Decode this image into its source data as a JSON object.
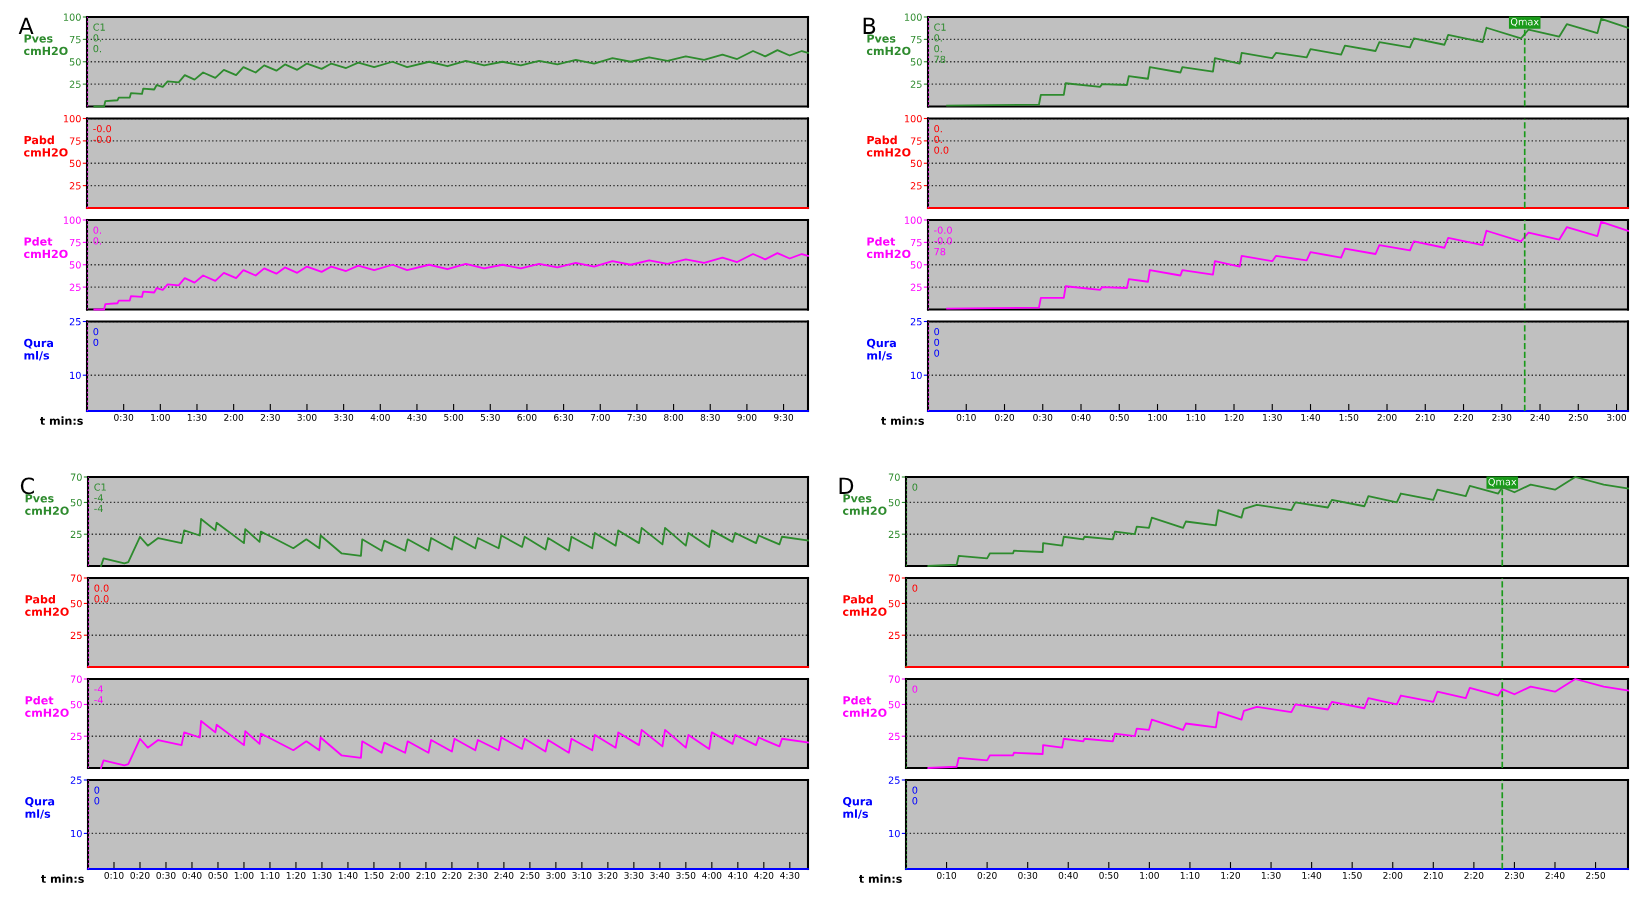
{
  "chart_data": [
    {
      "type": "line",
      "title": "A",
      "ylabel": "Pves\ncmH2O",
      "xlim": [
        0,
        590
      ],
      "ylim": [
        0,
        100
      ],
      "yticks": [
        25,
        50,
        75,
        100
      ],
      "grid": "y",
      "tick_labels": "y",
      "annotations": [
        "C1",
        "0.",
        "0."
      ],
      "ref_lines": [
        {
          "axis": "x",
          "value": 0,
          "color": "#ff00ff",
          "line_style": "dotted"
        }
      ],
      "series": [
        {
          "color": "#2e8b2e",
          "x": [
            6,
            14,
            15,
            25,
            26,
            35,
            36,
            45,
            46,
            55,
            57,
            62,
            66,
            75,
            80,
            88,
            95,
            105,
            112,
            122,
            128,
            138,
            145,
            155,
            162,
            172,
            180,
            192,
            200,
            212,
            222,
            235,
            250,
            262,
            280,
            295,
            310,
            325,
            340,
            355,
            370,
            385,
            400,
            415,
            430,
            445,
            460,
            475,
            490,
            505,
            520,
            532,
            545,
            555,
            565,
            575,
            585,
            590
          ],
          "values": [
            0,
            0,
            6,
            7,
            10,
            10,
            15,
            14,
            20,
            19,
            24,
            22,
            28,
            27,
            35,
            30,
            38,
            32,
            41,
            35,
            44,
            38,
            46,
            40,
            47,
            41,
            48,
            42,
            48,
            43,
            49,
            44,
            50,
            44,
            50,
            45,
            51,
            46,
            50,
            46,
            51,
            47,
            52,
            48,
            54,
            50,
            55,
            51,
            56,
            52,
            58,
            53,
            62,
            56,
            63,
            57,
            62,
            60
          ]
        }
      ]
    },
    {
      "type": "line",
      "title": "B",
      "ylabel": "Pves\ncmH2O",
      "xlim": [
        0,
        183
      ],
      "ylim": [
        0,
        100
      ],
      "yticks": [
        25,
        50,
        75,
        100
      ],
      "grid": "y",
      "tick_labels": "y",
      "annotations": [
        "C1",
        "0.",
        "0.",
        "78"
      ],
      "ref_lines": [
        {
          "axis": "x",
          "value": 0,
          "color": "#ff00ff",
          "line_style": "dotted"
        },
        {
          "axis": "x",
          "value": 156,
          "color": "#1a9a1a",
          "line_style": "dashed",
          "label": "Qmax"
        }
      ],
      "series": [
        {
          "color": "#2e8b2e",
          "x": [
            5,
            29,
            29.5,
            35.5,
            36,
            45,
            45.5,
            52,
            52.5,
            57.5,
            58,
            66,
            66.5,
            74.5,
            75,
            81.5,
            82,
            90,
            91,
            99,
            100,
            108,
            109,
            117,
            118,
            126,
            127,
            135,
            136,
            145,
            146,
            155,
            157,
            165,
            167,
            175,
            176,
            183
          ],
          "values": [
            1,
            2,
            13,
            13,
            26,
            22,
            25,
            24,
            34,
            31,
            44,
            38,
            44,
            39,
            54,
            48,
            60,
            54,
            60,
            55,
            64,
            58,
            68,
            62,
            72,
            66,
            76,
            69,
            80,
            72,
            88,
            76,
            86,
            78,
            92,
            82,
            98,
            88
          ]
        }
      ]
    },
    {
      "type": "line",
      "ylabel": "Pabd\ncmH2O",
      "xlim": [
        0,
        590
      ],
      "ylim": [
        0,
        100
      ],
      "yticks": [
        25,
        50,
        75,
        100
      ],
      "grid": "y",
      "tick_labels": "y",
      "annotations": [
        "-0.0",
        "-0.0"
      ],
      "ref_lines": [
        {
          "axis": "x",
          "value": 0,
          "color": "#ff00ff",
          "line_style": "dotted"
        }
      ],
      "series": [
        {
          "color": "#ff0000",
          "x": [
            0,
            590
          ],
          "values": [
            0,
            0
          ]
        }
      ]
    },
    {
      "type": "line",
      "ylabel": "Pabd\ncmH2O",
      "xlim": [
        0,
        183
      ],
      "ylim": [
        0,
        100
      ],
      "yticks": [
        25,
        50,
        75,
        100
      ],
      "grid": "y",
      "tick_labels": "y",
      "annotations": [
        "0.",
        "0.",
        "0.0"
      ],
      "ref_lines": [
        {
          "axis": "x",
          "value": 0,
          "color": "#ff00ff",
          "line_style": "dotted"
        },
        {
          "axis": "x",
          "value": 156,
          "color": "#1a9a1a",
          "line_style": "dashed"
        }
      ],
      "series": [
        {
          "color": "#ff0000",
          "x": [
            0,
            183
          ],
          "values": [
            0,
            0
          ]
        }
      ]
    },
    {
      "type": "line",
      "ylabel": "Pdet\ncmH2O",
      "xlim": [
        0,
        590
      ],
      "ylim": [
        0,
        100
      ],
      "yticks": [
        25,
        50,
        75,
        100
      ],
      "grid": "y",
      "tick_labels": "y",
      "annotations": [
        "0.",
        "0."
      ],
      "ref_lines": [
        {
          "axis": "x",
          "value": 0,
          "color": "#ff00ff",
          "line_style": "dotted"
        }
      ],
      "series": [
        {
          "color": "#ff00ff",
          "x": [
            6,
            14,
            15,
            25,
            26,
            35,
            36,
            45,
            46,
            55,
            57,
            62,
            66,
            75,
            80,
            88,
            95,
            105,
            112,
            122,
            128,
            138,
            145,
            155,
            162,
            172,
            180,
            192,
            200,
            212,
            222,
            235,
            250,
            262,
            280,
            295,
            310,
            325,
            340,
            355,
            370,
            385,
            400,
            415,
            430,
            445,
            460,
            475,
            490,
            505,
            520,
            532,
            545,
            555,
            565,
            575,
            585,
            590
          ],
          "values": [
            0,
            0,
            6,
            7,
            10,
            10,
            15,
            14,
            20,
            19,
            24,
            22,
            28,
            27,
            35,
            30,
            38,
            32,
            41,
            35,
            44,
            38,
            46,
            40,
            47,
            41,
            48,
            42,
            48,
            43,
            49,
            44,
            50,
            44,
            50,
            45,
            51,
            46,
            50,
            46,
            51,
            47,
            52,
            48,
            54,
            50,
            55,
            51,
            56,
            52,
            58,
            53,
            62,
            56,
            63,
            57,
            62,
            60
          ]
        }
      ]
    },
    {
      "type": "line",
      "ylabel": "Pdet\ncmH2O",
      "xlim": [
        0,
        183
      ],
      "ylim": [
        0,
        100
      ],
      "yticks": [
        25,
        50,
        75,
        100
      ],
      "grid": "y",
      "tick_labels": "y",
      "annotations": [
        "-0.0",
        "-0.0",
        "78"
      ],
      "ref_lines": [
        {
          "axis": "x",
          "value": 0,
          "color": "#ff00ff",
          "line_style": "dotted"
        },
        {
          "axis": "x",
          "value": 156,
          "color": "#1a9a1a",
          "line_style": "dashed"
        }
      ],
      "series": [
        {
          "color": "#ff00ff",
          "x": [
            5,
            29,
            29.5,
            35.5,
            36,
            45,
            45.5,
            52,
            52.5,
            57.5,
            58,
            66,
            66.5,
            74.5,
            75,
            81.5,
            82,
            90,
            91,
            99,
            100,
            108,
            109,
            117,
            118,
            126,
            127,
            135,
            136,
            145,
            146,
            155,
            157,
            165,
            167,
            175,
            176,
            183
          ],
          "values": [
            1,
            2,
            13,
            13,
            26,
            22,
            25,
            24,
            34,
            31,
            44,
            38,
            44,
            39,
            54,
            48,
            60,
            54,
            60,
            55,
            64,
            58,
            68,
            62,
            72,
            66,
            76,
            69,
            80,
            72,
            88,
            76,
            86,
            78,
            92,
            82,
            98,
            88
          ]
        }
      ]
    },
    {
      "type": "line",
      "ylabel": "Qura\nml/s",
      "xlabel": "t min:s",
      "xlim": [
        0,
        590
      ],
      "ylim": [
        0,
        25
      ],
      "yticks": [
        10,
        25
      ],
      "grid": "y",
      "annotations": [
        "0",
        "0"
      ],
      "ref_lines": [
        {
          "axis": "x",
          "value": 0,
          "color": "#ff00ff",
          "line_style": "dotted"
        }
      ],
      "xticks": [
        {
          "value": 30,
          "label": "0:30"
        },
        {
          "value": 60,
          "label": "1:00"
        },
        {
          "value": 90,
          "label": "1:30"
        },
        {
          "value": 120,
          "label": "2:00"
        },
        {
          "value": 150,
          "label": "2:30"
        },
        {
          "value": 180,
          "label": "3:00"
        },
        {
          "value": 210,
          "label": "3:30"
        },
        {
          "value": 240,
          "label": "4:00"
        },
        {
          "value": 270,
          "label": "4:30"
        },
        {
          "value": 300,
          "label": "5:00"
        },
        {
          "value": 330,
          "label": "5:30"
        },
        {
          "value": 360,
          "label": "6:00"
        },
        {
          "value": 390,
          "label": "6:30"
        },
        {
          "value": 420,
          "label": "7:00"
        },
        {
          "value": 450,
          "label": "7:30"
        },
        {
          "value": 480,
          "label": "8:00"
        },
        {
          "value": 510,
          "label": "8:30"
        },
        {
          "value": 540,
          "label": "9:00"
        },
        {
          "value": 570,
          "label": "9:30"
        }
      ],
      "series": [
        {
          "color": "#0000ff",
          "x": [
            0,
            590
          ],
          "values": [
            0,
            0
          ]
        }
      ]
    },
    {
      "type": "line",
      "ylabel": "Qura\nml/s",
      "xlabel": "t min:s",
      "xlim": [
        0,
        183
      ],
      "ylim": [
        0,
        25
      ],
      "yticks": [
        10,
        25
      ],
      "grid": "y",
      "annotations": [
        "0",
        "0",
        "0"
      ],
      "ref_lines": [
        {
          "axis": "x",
          "value": 0,
          "color": "#ff00ff",
          "line_style": "dotted"
        },
        {
          "axis": "x",
          "value": 156,
          "color": "#1a9a1a",
          "line_style": "dashed"
        }
      ],
      "xticks": [
        {
          "value": 10,
          "label": "0:10"
        },
        {
          "value": 20,
          "label": "0:20"
        },
        {
          "value": 30,
          "label": "0:30"
        },
        {
          "value": 40,
          "label": "0:40"
        },
        {
          "value": 50,
          "label": "0:50"
        },
        {
          "value": 60,
          "label": "1:00"
        },
        {
          "value": 70,
          "label": "1:10"
        },
        {
          "value": 80,
          "label": "1:20"
        },
        {
          "value": 90,
          "label": "1:30"
        },
        {
          "value": 100,
          "label": "1:40"
        },
        {
          "value": 110,
          "label": "1:50"
        },
        {
          "value": 120,
          "label": "2:00"
        },
        {
          "value": 130,
          "label": "2:10"
        },
        {
          "value": 140,
          "label": "2:20"
        },
        {
          "value": 150,
          "label": "2:30"
        },
        {
          "value": 160,
          "label": "2:40"
        },
        {
          "value": 170,
          "label": "2:50"
        },
        {
          "value": 180,
          "label": "3:00"
        }
      ],
      "series": [
        {
          "color": "#0000ff",
          "x": [
            0,
            183
          ],
          "values": [
            0,
            0
          ]
        }
      ]
    },
    {
      "type": "line",
      "title": "C",
      "ylabel": "Pves\ncmH2O",
      "xlim": [
        0,
        277
      ],
      "ylim": [
        0,
        70
      ],
      "yticks": [
        25,
        50,
        70
      ],
      "grid": "y",
      "tick_labels": "y",
      "annotations": [
        "C1",
        "-4",
        "-4"
      ],
      "ref_lines": [
        {
          "axis": "x",
          "value": 0,
          "color": "#ff00ff",
          "line_style": "dotted"
        }
      ],
      "series": [
        {
          "color": "#2e8b2e",
          "x": [
            5,
            6,
            14,
            15.5,
            20,
            23,
            27,
            36,
            37,
            43,
            43.5,
            49,
            49.5,
            60,
            60.5,
            66,
            66.5,
            69.5,
            79,
            84,
            89,
            89.5,
            97.5,
            105,
            105.5,
            113,
            114,
            122,
            123,
            131,
            132,
            140,
            141,
            149,
            150,
            158,
            159,
            167,
            168,
            176,
            177,
            185,
            186,
            194,
            195,
            203,
            204,
            212,
            213,
            221,
            222,
            230,
            231,
            239,
            240,
            248,
            249,
            257,
            258,
            266,
            267,
            277
          ],
          "values": [
            0,
            6,
            2,
            3,
            23,
            16,
            22,
            18,
            28,
            24,
            37,
            28,
            34,
            18,
            29,
            19,
            27,
            24,
            14,
            21,
            14,
            24,
            10,
            8,
            21,
            12,
            20,
            12,
            21,
            12,
            22,
            13,
            23,
            14,
            22,
            14,
            24,
            15,
            23,
            13,
            22,
            12,
            23,
            14,
            26,
            16,
            28,
            18,
            30,
            17,
            30,
            16,
            26,
            15,
            28,
            19,
            26,
            18,
            24,
            17,
            23,
            20
          ]
        }
      ]
    },
    {
      "type": "line",
      "title": "D",
      "ylabel": "Pves\ncmH2O",
      "xlim": [
        0,
        178
      ],
      "ylim": [
        0,
        70
      ],
      "yticks": [
        25,
        50,
        70
      ],
      "grid": "y",
      "tick_labels": "y",
      "annotations": [
        "0"
      ],
      "ref_lines": [
        {
          "axis": "x",
          "value": 0,
          "color": "#1a9a1a",
          "line_style": "dotted"
        },
        {
          "axis": "x",
          "value": 147,
          "color": "#1a9a1a",
          "line_style": "dashed",
          "label": "Qmax"
        }
      ],
      "series": [
        {
          "color": "#2e8b2e",
          "x": [
            5.5,
            12.5,
            13,
            20,
            20.7,
            26.4,
            26.6,
            33.7,
            33.8,
            38.5,
            38.9,
            43.7,
            44,
            51,
            51.5,
            56.4,
            56.9,
            59.9,
            60.6,
            68.3,
            69,
            76.4,
            77,
            82.7,
            83.3,
            86.5,
            95,
            96,
            104,
            105,
            113,
            114,
            121,
            122,
            130,
            131,
            138,
            139,
            146,
            147,
            150,
            154,
            160,
            165,
            172,
            178
          ],
          "values": [
            0,
            1,
            8,
            6,
            10,
            10,
            12,
            11,
            18,
            16,
            23,
            21,
            23,
            21,
            27,
            25,
            31,
            30,
            38,
            30,
            35,
            32,
            44,
            38,
            45,
            48,
            44,
            50,
            46,
            52,
            47,
            55,
            50,
            57,
            52,
            60,
            55,
            63,
            57,
            62,
            58,
            64,
            60,
            70,
            64,
            61
          ]
        }
      ]
    },
    {
      "type": "line",
      "ylabel": "Pabd\ncmH2O",
      "xlim": [
        0,
        277
      ],
      "ylim": [
        0,
        70
      ],
      "yticks": [
        25,
        50,
        70
      ],
      "grid": "y",
      "tick_labels": "y",
      "annotations": [
        "0.0",
        "0.0"
      ],
      "ref_lines": [
        {
          "axis": "x",
          "value": 0,
          "color": "#ff00ff",
          "line_style": "dotted"
        }
      ],
      "series": [
        {
          "color": "#ff0000",
          "x": [
            0,
            277
          ],
          "values": [
            0,
            0
          ]
        }
      ]
    },
    {
      "type": "line",
      "ylabel": "Pabd\ncmH2O",
      "xlim": [
        0,
        178
      ],
      "ylim": [
        0,
        70
      ],
      "yticks": [
        25,
        50,
        70
      ],
      "grid": "y",
      "tick_labels": "y",
      "annotations": [
        "0"
      ],
      "ref_lines": [
        {
          "axis": "x",
          "value": 0,
          "color": "#1a9a1a",
          "line_style": "dotted"
        },
        {
          "axis": "x",
          "value": 147,
          "color": "#1a9a1a",
          "line_style": "dashed"
        }
      ],
      "series": [
        {
          "color": "#ff0000",
          "x": [
            0,
            178
          ],
          "values": [
            0,
            0
          ]
        }
      ]
    },
    {
      "type": "line",
      "ylabel": "Pdet\ncmH2O",
      "xlim": [
        0,
        277
      ],
      "ylim": [
        0,
        70
      ],
      "yticks": [
        25,
        50,
        70
      ],
      "grid": "y",
      "tick_labels": "y",
      "annotations": [
        "-4",
        "-4"
      ],
      "ref_lines": [
        {
          "axis": "x",
          "value": 0,
          "color": "#ff00ff",
          "line_style": "dotted"
        }
      ],
      "series": [
        {
          "color": "#ff00ff",
          "x": [
            5,
            6,
            14,
            15.5,
            20,
            23,
            27,
            36,
            37,
            43,
            43.5,
            49,
            49.5,
            60,
            60.5,
            66,
            66.5,
            69.5,
            79,
            84,
            89,
            89.5,
            97.5,
            105,
            105.5,
            113,
            114,
            122,
            123,
            131,
            132,
            140,
            141,
            149,
            150,
            158,
            159,
            167,
            168,
            176,
            177,
            185,
            186,
            194,
            195,
            203,
            204,
            212,
            213,
            221,
            222,
            230,
            231,
            239,
            240,
            248,
            249,
            257,
            258,
            266,
            267,
            277
          ],
          "values": [
            0,
            6,
            2,
            3,
            23,
            16,
            22,
            18,
            28,
            24,
            37,
            28,
            34,
            18,
            29,
            19,
            27,
            24,
            14,
            21,
            14,
            24,
            10,
            8,
            21,
            12,
            20,
            12,
            21,
            12,
            22,
            13,
            23,
            14,
            22,
            14,
            24,
            15,
            23,
            13,
            22,
            12,
            23,
            14,
            26,
            16,
            28,
            18,
            30,
            17,
            30,
            16,
            26,
            15,
            28,
            19,
            26,
            18,
            24,
            17,
            23,
            20
          ]
        }
      ]
    },
    {
      "type": "line",
      "ylabel": "Pdet\ncmH2O",
      "xlim": [
        0,
        178
      ],
      "ylim": [
        0,
        70
      ],
      "yticks": [
        25,
        50,
        70
      ],
      "grid": "y",
      "tick_labels": "y",
      "annotations": [
        "0"
      ],
      "ref_lines": [
        {
          "axis": "x",
          "value": 0,
          "color": "#1a9a1a",
          "line_style": "dotted"
        },
        {
          "axis": "x",
          "value": 147,
          "color": "#1a9a1a",
          "line_style": "dashed"
        }
      ],
      "series": [
        {
          "color": "#ff00ff",
          "x": [
            5.5,
            12.5,
            13,
            20,
            20.7,
            26.4,
            26.6,
            33.7,
            33.8,
            38.5,
            38.9,
            43.7,
            44,
            51,
            51.5,
            56.4,
            56.9,
            59.9,
            60.6,
            68.3,
            69,
            76.4,
            77,
            82.7,
            83.3,
            86.5,
            95,
            96,
            104,
            105,
            113,
            114,
            121,
            122,
            130,
            131,
            138,
            139,
            146,
            147,
            150,
            154,
            160,
            165,
            172,
            178
          ],
          "values": [
            0,
            1,
            8,
            6,
            10,
            10,
            12,
            11,
            18,
            16,
            23,
            21,
            23,
            21,
            27,
            25,
            31,
            30,
            38,
            30,
            35,
            32,
            44,
            38,
            45,
            48,
            44,
            50,
            46,
            52,
            47,
            55,
            50,
            57,
            52,
            60,
            55,
            63,
            57,
            62,
            58,
            64,
            60,
            70,
            64,
            61
          ]
        }
      ]
    },
    {
      "type": "line",
      "ylabel": "Qura\nml/s",
      "xlabel": "t min:s",
      "xlim": [
        0,
        277
      ],
      "ylim": [
        0,
        25
      ],
      "yticks": [
        10,
        25
      ],
      "grid": "y",
      "annotations": [
        "0",
        "0"
      ],
      "ref_lines": [
        {
          "axis": "x",
          "value": 0,
          "color": "#ff00ff",
          "line_style": "dotted"
        }
      ],
      "xticks": [
        {
          "value": 10,
          "label": "0:10"
        },
        {
          "value": 20,
          "label": "0:20"
        },
        {
          "value": 30,
          "label": "0:30"
        },
        {
          "value": 40,
          "label": "0:40"
        },
        {
          "value": 50,
          "label": "0:50"
        },
        {
          "value": 60,
          "label": "1:00"
        },
        {
          "value": 70,
          "label": "1:10"
        },
        {
          "value": 80,
          "label": "1:20"
        },
        {
          "value": 90,
          "label": "1:30"
        },
        {
          "value": 100,
          "label": "1:40"
        },
        {
          "value": 110,
          "label": "1:50"
        },
        {
          "value": 120,
          "label": "2:00"
        },
        {
          "value": 130,
          "label": "2:10"
        },
        {
          "value": 140,
          "label": "2:20"
        },
        {
          "value": 150,
          "label": "2:30"
        },
        {
          "value": 160,
          "label": "2:40"
        },
        {
          "value": 170,
          "label": "2:50"
        },
        {
          "value": 180,
          "label": "3:00"
        },
        {
          "value": 190,
          "label": "3:10"
        },
        {
          "value": 200,
          "label": "3:20"
        },
        {
          "value": 210,
          "label": "3:30"
        },
        {
          "value": 220,
          "label": "3:40"
        },
        {
          "value": 230,
          "label": "3:50"
        },
        {
          "value": 240,
          "label": "4:00"
        },
        {
          "value": 250,
          "label": "4:10"
        },
        {
          "value": 260,
          "label": "4:20"
        },
        {
          "value": 270,
          "label": "4:30"
        }
      ],
      "series": [
        {
          "color": "#0000ff",
          "x": [
            0,
            277
          ],
          "values": [
            0,
            0
          ]
        }
      ]
    },
    {
      "type": "line",
      "ylabel": "Qura\nml/s",
      "xlabel": "t min:s",
      "xlim": [
        0,
        178
      ],
      "ylim": [
        0,
        25
      ],
      "yticks": [
        10,
        25
      ],
      "grid": "y",
      "annotations": [
        "0",
        "0"
      ],
      "ref_lines": [
        {
          "axis": "x",
          "value": 0,
          "color": "#1a9a1a",
          "line_style": "dotted"
        },
        {
          "axis": "x",
          "value": 147,
          "color": "#1a9a1a",
          "line_style": "dashed"
        }
      ],
      "xticks": [
        {
          "value": 10,
          "label": "0:10"
        },
        {
          "value": 20,
          "label": "0:20"
        },
        {
          "value": 30,
          "label": "0:30"
        },
        {
          "value": 40,
          "label": "0:40"
        },
        {
          "value": 50,
          "label": "0:50"
        },
        {
          "value": 60,
          "label": "1:00"
        },
        {
          "value": 70,
          "label": "1:10"
        },
        {
          "value": 80,
          "label": "1:20"
        },
        {
          "value": 90,
          "label": "1:30"
        },
        {
          "value": 100,
          "label": "1:40"
        },
        {
          "value": 110,
          "label": "1:50"
        },
        {
          "value": 120,
          "label": "2:00"
        },
        {
          "value": 130,
          "label": "2:10"
        },
        {
          "value": 140,
          "label": "2:20"
        },
        {
          "value": 150,
          "label": "2:30"
        },
        {
          "value": 160,
          "label": "2:40"
        },
        {
          "value": 170,
          "label": "2:50"
        }
      ],
      "series": [
        {
          "color": "#0000ff",
          "x": [
            0,
            178
          ],
          "values": [
            0,
            0
          ]
        }
      ]
    }
  ]
}
